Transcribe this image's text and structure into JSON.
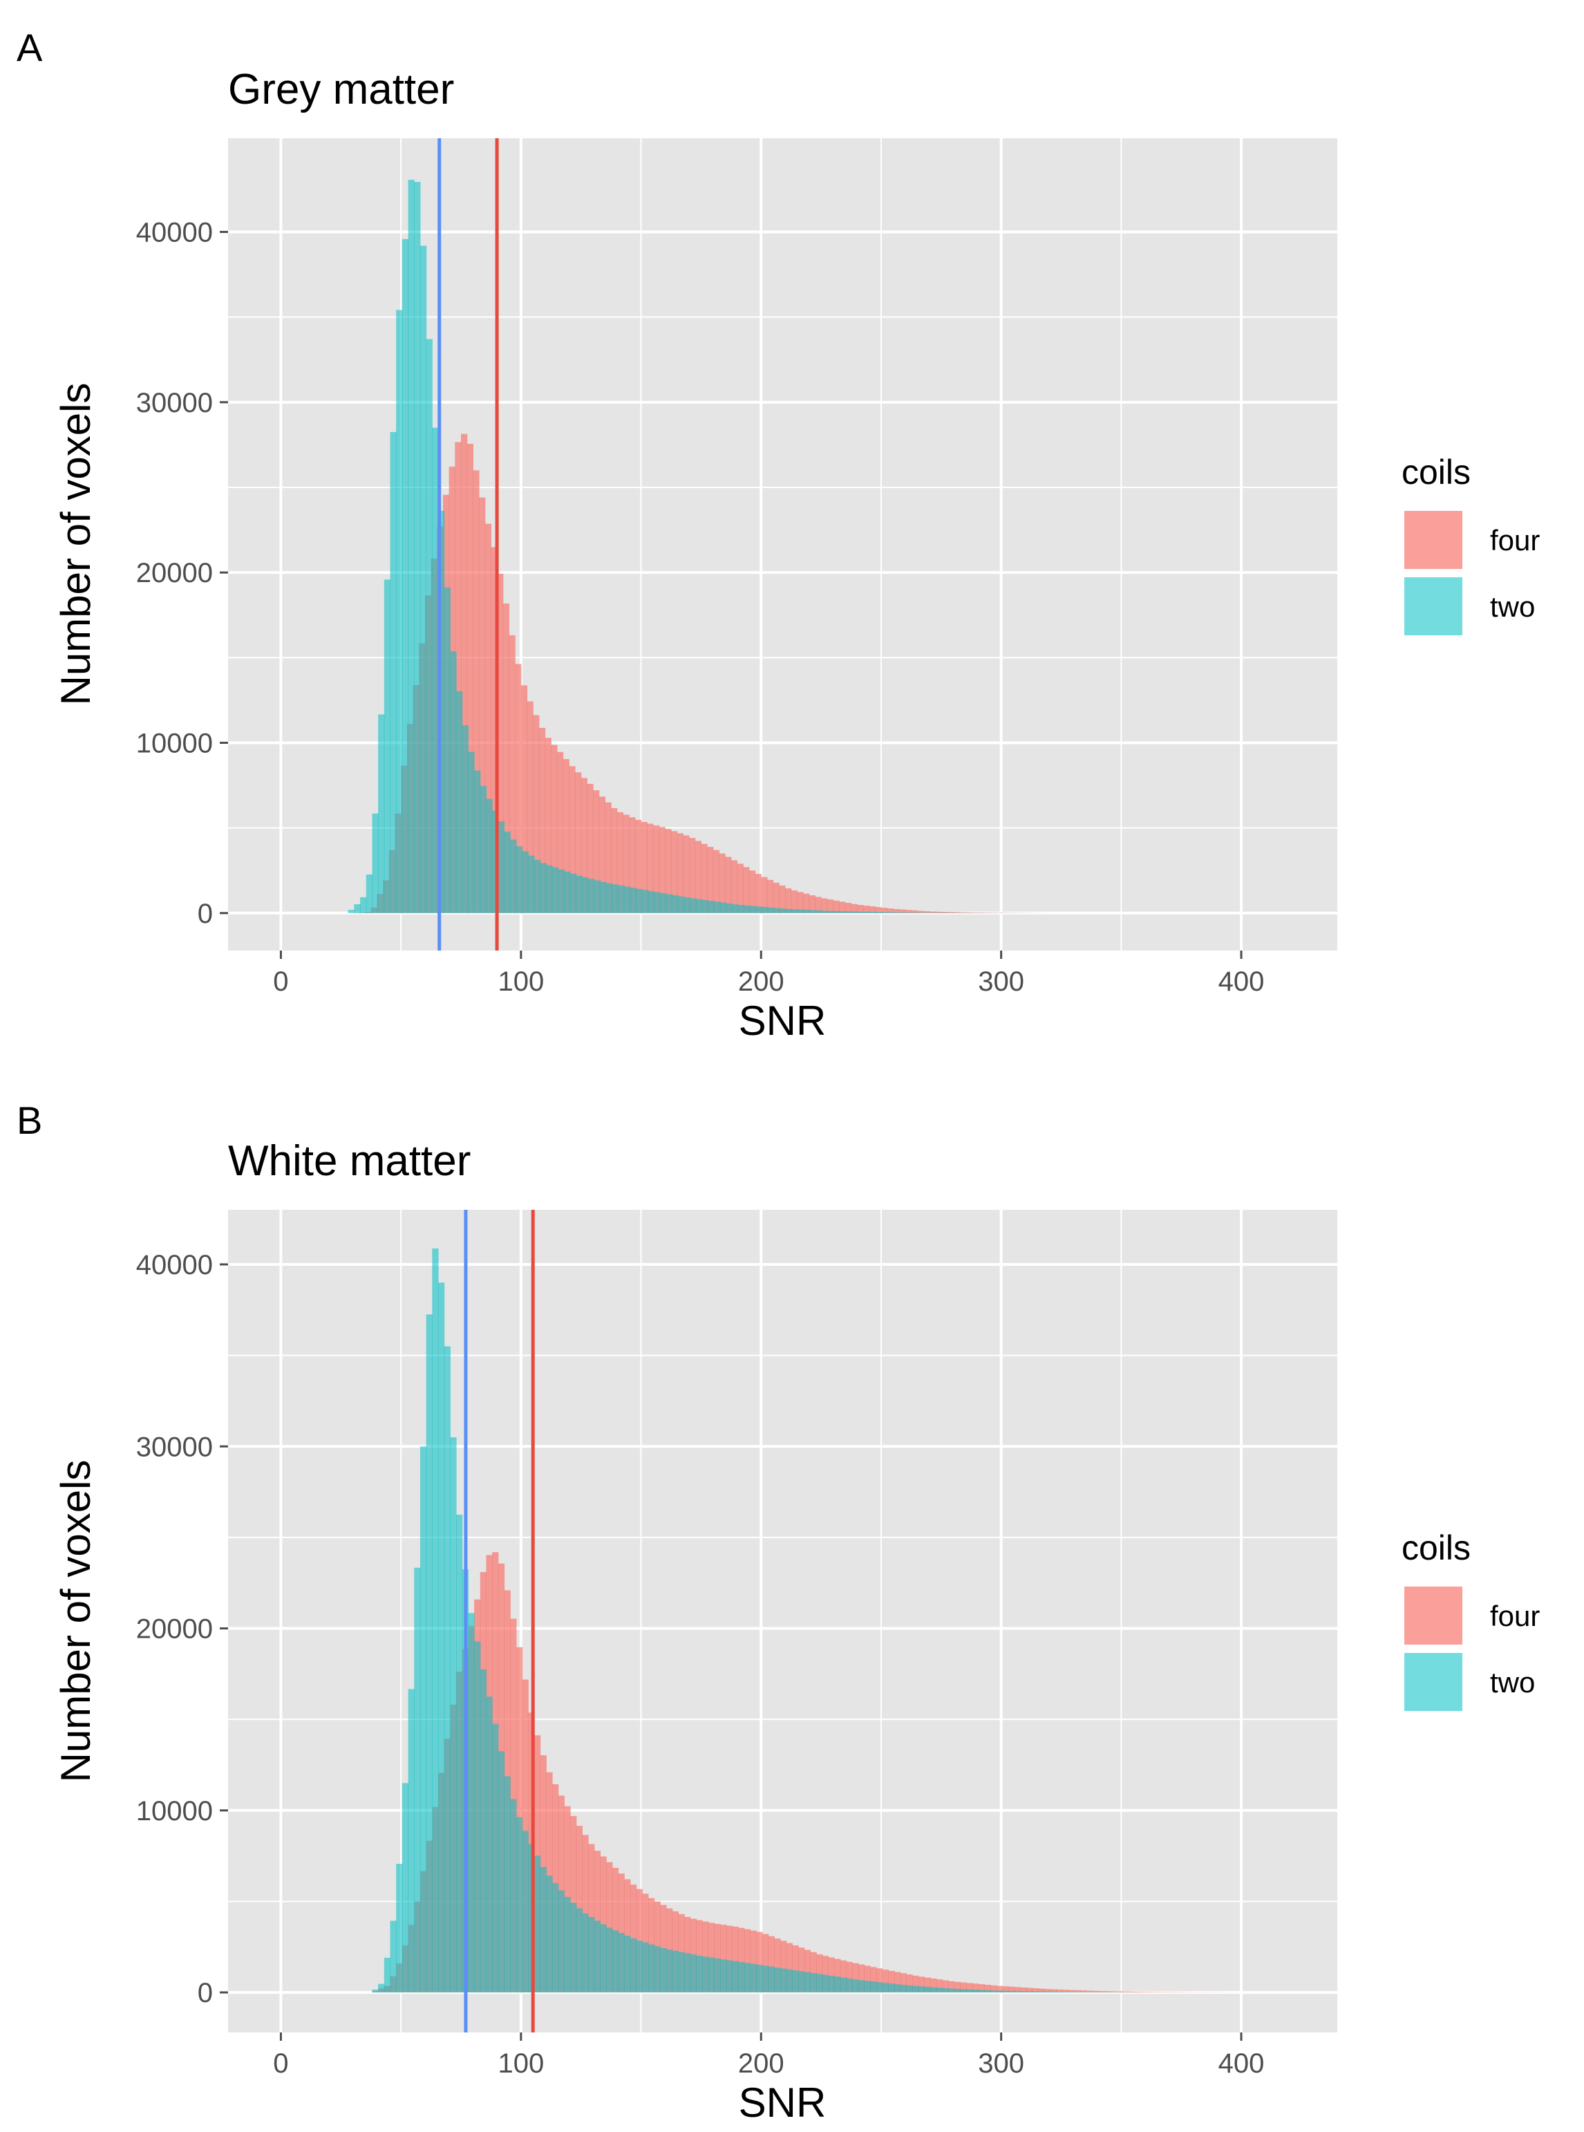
{
  "colors": {
    "panel_bg": "#e5e5e5",
    "grid": "#ffffff",
    "four": "#f8766d",
    "two": "#00bfc4",
    "four_line": "#e8493e",
    "two_line": "#5b8ff5",
    "tick": "#4d4d4d"
  },
  "chart_data": [
    {
      "panel": "A",
      "type": "histogram",
      "title": "Grey matter",
      "xlabel": "SNR",
      "ylabel": "Number of voxels",
      "xlim": [
        -22,
        440
      ],
      "ylim": [
        -2200,
        45500
      ],
      "xticks": [
        0,
        100,
        200,
        300,
        400
      ],
      "xtick_labels": [
        "0",
        "100",
        "200",
        "300",
        "400"
      ],
      "yticks": [
        0,
        10000,
        20000,
        30000,
        40000
      ],
      "ytick_labels": [
        "0",
        "10000",
        "20000",
        "30000",
        "40000"
      ],
      "legend": {
        "title": "coils",
        "position": "right",
        "entries": [
          "four",
          "two"
        ]
      },
      "binwidth": 2.5,
      "series": [
        {
          "name": "four",
          "color_key": "four",
          "mean_line": 90,
          "points": [
            [
              30,
              0
            ],
            [
              38,
              80
            ],
            [
              44,
              2000
            ],
            [
              48,
              5000
            ],
            [
              52,
              9500
            ],
            [
              58,
              15000
            ],
            [
              62,
              19500
            ],
            [
              66,
              22500
            ],
            [
              70,
              25500
            ],
            [
              74,
              27800
            ],
            [
              76,
              28200
            ],
            [
              79,
              27500
            ],
            [
              82,
              25500
            ],
            [
              86,
              23000
            ],
            [
              90,
              20800
            ],
            [
              94,
              18000
            ],
            [
              98,
              15000
            ],
            [
              102,
              13000
            ],
            [
              106,
              11700
            ],
            [
              110,
              10500
            ],
            [
              116,
              9500
            ],
            [
              122,
              8500
            ],
            [
              128,
              7700
            ],
            [
              134,
              6800
            ],
            [
              140,
              6000
            ],
            [
              150,
              5400
            ],
            [
              160,
              5000
            ],
            [
              170,
              4500
            ],
            [
              180,
              3800
            ],
            [
              190,
              3000
            ],
            [
              200,
              2200
            ],
            [
              212,
              1400
            ],
            [
              225,
              900
            ],
            [
              240,
              500
            ],
            [
              255,
              250
            ],
            [
              270,
              100
            ],
            [
              285,
              40
            ],
            [
              300,
              15
            ],
            [
              320,
              0
            ]
          ]
        },
        {
          "name": "two",
          "color_key": "two",
          "mean_line": 66,
          "points": [
            [
              28,
              0
            ],
            [
              30,
              300
            ],
            [
              34,
              800
            ],
            [
              37,
              2400
            ],
            [
              40,
              7000
            ],
            [
              43,
              15000
            ],
            [
              46,
              26000
            ],
            [
              49,
              35000
            ],
            [
              52,
              40000
            ],
            [
              54,
              43000
            ],
            [
              56,
              43500
            ],
            [
              58,
              42000
            ],
            [
              60,
              37500
            ],
            [
              63,
              31000
            ],
            [
              66,
              25000
            ],
            [
              69,
              19500
            ],
            [
              72,
              15000
            ],
            [
              76,
              11500
            ],
            [
              80,
              9000
            ],
            [
              85,
              7200
            ],
            [
              90,
              5800
            ],
            [
              95,
              4600
            ],
            [
              100,
              3800
            ],
            [
              108,
              3000
            ],
            [
              116,
              2600
            ],
            [
              124,
              2200
            ],
            [
              135,
              1800
            ],
            [
              150,
              1400
            ],
            [
              170,
              900
            ],
            [
              190,
              500
            ],
            [
              210,
              250
            ],
            [
              230,
              120
            ],
            [
              260,
              40
            ],
            [
              290,
              10
            ],
            [
              320,
              0
            ]
          ]
        }
      ]
    },
    {
      "panel": "B",
      "type": "histogram",
      "title": "White matter",
      "xlabel": "SNR",
      "ylabel": "Number of voxels",
      "xlim": [
        -22,
        440
      ],
      "ylim": [
        -2200,
        43000
      ],
      "xticks": [
        0,
        100,
        200,
        300,
        400
      ],
      "xtick_labels": [
        "0",
        "100",
        "200",
        "300",
        "400"
      ],
      "yticks": [
        0,
        10000,
        20000,
        30000,
        40000
      ],
      "ytick_labels": [
        "0",
        "10000",
        "20000",
        "30000",
        "40000"
      ],
      "legend": {
        "title": "coils",
        "position": "right",
        "entries": [
          "four",
          "two"
        ]
      },
      "binwidth": 2.5,
      "series": [
        {
          "name": "four",
          "color_key": "four",
          "mean_line": 105,
          "points": [
            [
              38,
              0
            ],
            [
              45,
              400
            ],
            [
              50,
              1800
            ],
            [
              56,
              4500
            ],
            [
              62,
              8500
            ],
            [
              68,
              13000
            ],
            [
              74,
              17500
            ],
            [
              80,
              20500
            ],
            [
              84,
              23000
            ],
            [
              88,
              24500
            ],
            [
              92,
              23500
            ],
            [
              96,
              21000
            ],
            [
              100,
              18500
            ],
            [
              104,
              15500
            ],
            [
              108,
              13500
            ],
            [
              112,
              12000
            ],
            [
              118,
              10500
            ],
            [
              124,
              9200
            ],
            [
              130,
              8000
            ],
            [
              138,
              7000
            ],
            [
              146,
              6000
            ],
            [
              154,
              5200
            ],
            [
              162,
              4600
            ],
            [
              170,
              4100
            ],
            [
              180,
              3800
            ],
            [
              190,
              3600
            ],
            [
              200,
              3300
            ],
            [
              212,
              2700
            ],
            [
              224,
              2100
            ],
            [
              236,
              1700
            ],
            [
              250,
              1300
            ],
            [
              265,
              900
            ],
            [
              280,
              600
            ],
            [
              300,
              350
            ],
            [
              320,
              180
            ],
            [
              340,
              80
            ],
            [
              360,
              30
            ],
            [
              380,
              10
            ],
            [
              400,
              0
            ]
          ]
        },
        {
          "name": "two",
          "color_key": "two",
          "mean_line": 77,
          "points": [
            [
              38,
              0
            ],
            [
              42,
              500
            ],
            [
              46,
              3000
            ],
            [
              50,
              8000
            ],
            [
              54,
              16000
            ],
            [
              57,
              24000
            ],
            [
              60,
              32000
            ],
            [
              62,
              38000
            ],
            [
              64,
              41000
            ],
            [
              66,
              40000
            ],
            [
              69,
              36000
            ],
            [
              72,
              30000
            ],
            [
              75,
              25000
            ],
            [
              79,
              21000
            ],
            [
              83,
              18500
            ],
            [
              88,
              15500
            ],
            [
              93,
              12500
            ],
            [
              98,
              10000
            ],
            [
              104,
              8200
            ],
            [
              110,
              6700
            ],
            [
              118,
              5400
            ],
            [
              126,
              4400
            ],
            [
              136,
              3600
            ],
            [
              148,
              2900
            ],
            [
              160,
              2400
            ],
            [
              175,
              2000
            ],
            [
              190,
              1700
            ],
            [
              205,
              1400
            ],
            [
              220,
              1100
            ],
            [
              240,
              700
            ],
            [
              260,
              400
            ],
            [
              280,
              200
            ],
            [
              300,
              90
            ],
            [
              330,
              30
            ],
            [
              360,
              0
            ]
          ]
        }
      ]
    }
  ]
}
